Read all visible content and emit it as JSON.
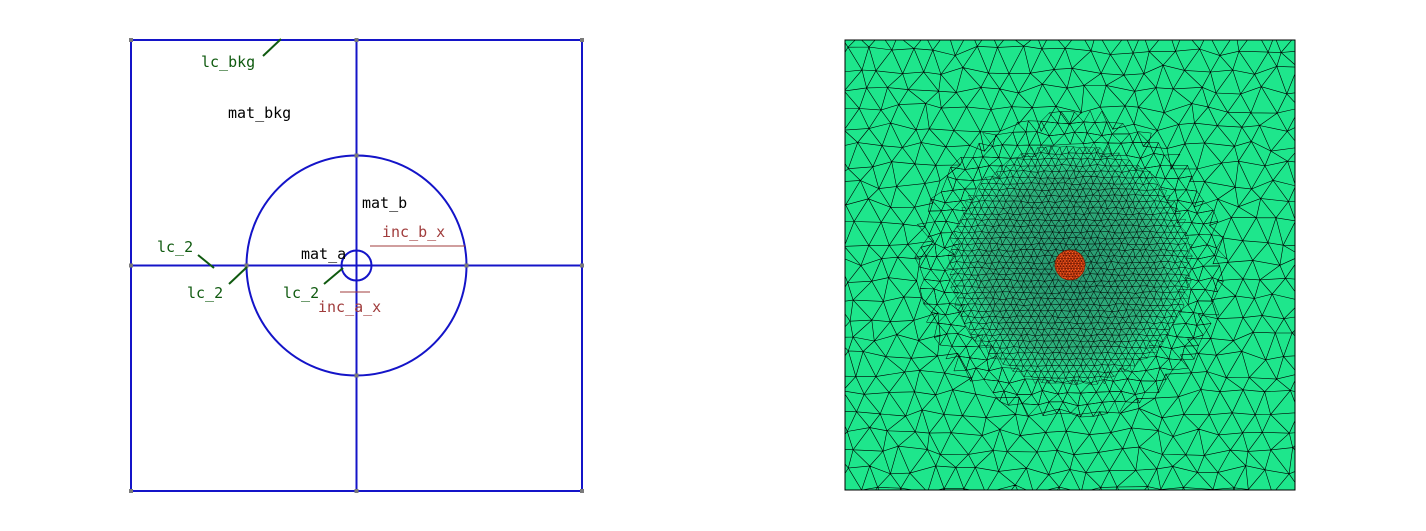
{
  "geometry_view": {
    "labels": {
      "lc_bkg": "lc_bkg",
      "mat_bkg": "mat_bkg",
      "mat_b": "mat_b",
      "mat_a": "mat_a",
      "inc_b_x": "inc_b_x",
      "inc_a_x": "inc_a_x",
      "lc_2_left": "lc_2",
      "lc_2_outer": "lc_2",
      "lc_2_inner": "lc_2"
    },
    "colors": {
      "boundary": "#1414c8",
      "point": "#7a7a7a",
      "characteristic_length": "#0f5a0f",
      "dimension": "#a03c3c",
      "material": "#000000"
    }
  },
  "mesh_view": {
    "colors": {
      "background_material": "#1ee68c",
      "inclusion_b_material": "#3cc8a0",
      "inclusion_a_material": "#ff5a1e",
      "edges": "#000000",
      "frame": "#000000"
    },
    "element_density": {
      "background": "coarse",
      "inclusion_b": "fine",
      "inclusion_a": "very fine"
    }
  }
}
